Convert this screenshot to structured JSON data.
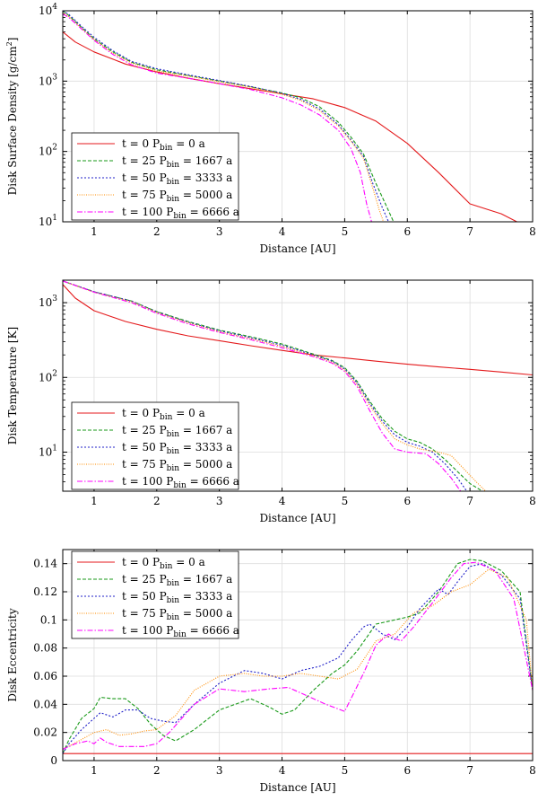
{
  "series_styles": [
    {
      "color": "#e41a1c",
      "dash": ""
    },
    {
      "color": "#1a9a1a",
      "dash": "4,2"
    },
    {
      "color": "#2020c8",
      "dash": "2,2"
    },
    {
      "color": "#ff8c00",
      "dash": "1,1.5"
    },
    {
      "color": "#ff00ff",
      "dash": "6,2,1.5,2"
    }
  ],
  "chart_data": [
    {
      "type": "line",
      "xlabel": "Distance [AU]",
      "ylabel": "Disk Surface Density [g/cm",
      "ylabel_sup": "2",
      "ylabel_end": "]",
      "xlim": [
        0.5,
        8
      ],
      "ylim": [
        10,
        10000
      ],
      "yscale": "log",
      "xticks": [
        "1",
        "2",
        "3",
        "4",
        "5",
        "6",
        "7",
        "8"
      ],
      "ytick_base": "10",
      "ytick_exps": [
        "1",
        "2",
        "3",
        "4"
      ],
      "grid": true,
      "legend_position": "bottom-left",
      "series": [
        {
          "name": "t = 0 P",
          "name_sub": "bin",
          "name_tail": " = 0 a",
          "x": [
            0.5,
            0.7,
            1,
            1.5,
            2,
            2.5,
            3,
            3.5,
            4,
            4.5,
            5,
            5.5,
            6,
            6.5,
            7,
            7.5,
            7.75
          ],
          "y": [
            5000,
            3600,
            2600,
            1750,
            1350,
            1100,
            920,
            780,
            660,
            560,
            420,
            270,
            130,
            50,
            18,
            13,
            10
          ]
        },
        {
          "name": "t = 25 P",
          "name_sub": "bin",
          "name_tail": " = 1667 a",
          "x": [
            0.5,
            0.6,
            0.8,
            1,
            1.3,
            1.6,
            2,
            2.5,
            3,
            3.5,
            4,
            4.3,
            4.6,
            4.9,
            5.1,
            5.3,
            5.5,
            5.65,
            5.78
          ],
          "y": [
            10000,
            8500,
            5800,
            4000,
            2600,
            1850,
            1450,
            1200,
            1000,
            830,
            680,
            580,
            430,
            260,
            160,
            92,
            35,
            18,
            10
          ]
        },
        {
          "name": "t = 50 P",
          "name_sub": "bin",
          "name_tail": " = 3333 a",
          "x": [
            0.5,
            0.6,
            0.8,
            1,
            1.3,
            1.6,
            2,
            2.5,
            3,
            3.5,
            4,
            4.3,
            4.6,
            4.9,
            5.1,
            5.3,
            5.45,
            5.6,
            5.7
          ],
          "y": [
            10000,
            8800,
            6000,
            4200,
            2700,
            1900,
            1500,
            1230,
            1020,
            840,
            670,
            550,
            400,
            240,
            145,
            85,
            35,
            16,
            10
          ]
        },
        {
          "name": "t = 75 P",
          "name_sub": "bin",
          "name_tail": " = 5000 a",
          "x": [
            0.5,
            0.6,
            0.8,
            1,
            1.3,
            1.6,
            2,
            2.5,
            3,
            3.5,
            4,
            4.3,
            4.6,
            4.9,
            5.1,
            5.3,
            5.45,
            5.55,
            5.62
          ],
          "y": [
            9500,
            8200,
            5600,
            3900,
            2500,
            1800,
            1400,
            1180,
            980,
            820,
            650,
            530,
            380,
            230,
            140,
            80,
            30,
            15,
            10
          ]
        },
        {
          "name": "t = 100 P",
          "name_sub": "bin",
          "name_tail": " = 6666 a",
          "x": [
            0.5,
            0.6,
            0.8,
            1,
            1.3,
            1.6,
            2,
            2.5,
            3,
            3.5,
            4,
            4.3,
            4.6,
            4.9,
            5.1,
            5.25,
            5.35,
            5.43
          ],
          "y": [
            9000,
            8000,
            5500,
            3800,
            2400,
            1700,
            1300,
            1100,
            920,
            760,
            580,
            460,
            330,
            200,
            110,
            50,
            18,
            10
          ]
        }
      ]
    },
    {
      "type": "line",
      "xlabel": "Distance [AU]",
      "ylabel": "Disk Temperature [K]",
      "xlim": [
        0.5,
        8
      ],
      "ylim": [
        3,
        2000
      ],
      "yscale": "log",
      "xticks": [
        "1",
        "2",
        "3",
        "4",
        "5",
        "6",
        "7",
        "8"
      ],
      "ytick_base": "10",
      "ytick_exps": [
        "1",
        "2",
        "3"
      ],
      "grid": true,
      "legend_position": "bottom-left",
      "series": [
        {
          "name": "t = 0 P",
          "name_sub": "bin",
          "name_tail": " = 0 a",
          "x": [
            0.5,
            0.7,
            1,
            1.5,
            2,
            2.5,
            3,
            3.5,
            4,
            4.5,
            5,
            5.5,
            6,
            6.5,
            7,
            7.5,
            8
          ],
          "y": [
            1750,
            1150,
            780,
            560,
            440,
            360,
            310,
            265,
            230,
            200,
            182,
            165,
            150,
            138,
            128,
            118,
            108
          ]
        },
        {
          "name": "t = 25 P",
          "name_sub": "bin",
          "name_tail": " = 1667 a",
          "x": [
            0.5,
            1,
            1.6,
            2,
            2.5,
            3,
            3.5,
            4,
            4.5,
            4.8,
            5,
            5.2,
            5.4,
            5.6,
            5.8,
            6,
            6.2,
            6.4,
            6.6,
            6.8,
            7,
            7.2
          ],
          "y": [
            1950,
            1400,
            1050,
            760,
            560,
            430,
            350,
            280,
            205,
            168,
            135,
            88,
            48,
            28,
            19,
            15,
            13.5,
            11,
            8,
            5.5,
            3.8,
            3
          ]
        },
        {
          "name": "t = 50 P",
          "name_sub": "bin",
          "name_tail": " = 3333 a",
          "x": [
            0.5,
            1,
            1.6,
            2,
            2.5,
            3,
            3.5,
            4,
            4.5,
            4.8,
            5,
            5.2,
            5.4,
            5.6,
            5.8,
            6,
            6.2,
            6.4,
            6.6,
            6.8,
            6.95
          ],
          "y": [
            1950,
            1400,
            1050,
            750,
            550,
            420,
            340,
            270,
            200,
            165,
            130,
            84,
            45,
            26,
            17,
            13.5,
            12,
            10,
            7,
            4.5,
            3
          ]
        },
        {
          "name": "t = 75 P",
          "name_sub": "bin",
          "name_tail": " = 5000 a",
          "x": [
            0.5,
            1,
            1.6,
            2,
            2.5,
            3,
            3.5,
            4,
            4.5,
            4.8,
            5,
            5.2,
            5.4,
            5.6,
            5.8,
            6,
            6.2,
            6.5,
            6.7,
            6.9,
            7.1,
            7.25
          ],
          "y": [
            1950,
            1380,
            1030,
            740,
            540,
            410,
            330,
            260,
            195,
            160,
            125,
            80,
            42,
            24,
            15,
            12.5,
            11,
            10,
            9,
            6,
            4,
            3
          ]
        },
        {
          "name": "t = 100 P",
          "name_sub": "bin",
          "name_tail": " = 6666 a",
          "x": [
            0.5,
            1,
            1.6,
            2,
            2.5,
            3,
            3.5,
            4,
            4.5,
            4.8,
            5,
            5.2,
            5.4,
            5.6,
            5.8,
            6,
            6.3,
            6.5,
            6.7,
            6.85
          ],
          "y": [
            1950,
            1380,
            1000,
            720,
            520,
            400,
            320,
            250,
            190,
            155,
            120,
            75,
            36,
            18,
            11,
            10,
            9.5,
            7,
            4.5,
            3
          ]
        }
      ]
    },
    {
      "type": "line",
      "xlabel": "Distance [AU]",
      "ylabel": "Disk Eccentricity",
      "xlim": [
        0.5,
        8
      ],
      "ylim": [
        0,
        0.15
      ],
      "yscale": "linear",
      "xticks": [
        "1",
        "2",
        "3",
        "4",
        "5",
        "6",
        "7",
        "8"
      ],
      "yticks": [
        "0",
        "0.02",
        "0.04",
        "0.06",
        "0.08",
        "0.1",
        "0.12",
        "0.14"
      ],
      "grid": true,
      "legend_position": "top-left",
      "series": [
        {
          "name": "t = 0 P",
          "name_sub": "bin",
          "name_tail": " = 0 a",
          "x": [
            0.5,
            8
          ],
          "y": [
            0.005,
            0.005
          ]
        },
        {
          "name": "t = 25 P",
          "name_sub": "bin",
          "name_tail": " = 1667 a",
          "x": [
            0.5,
            0.6,
            0.8,
            1,
            1.1,
            1.3,
            1.5,
            1.7,
            1.9,
            2.1,
            2.3,
            2.6,
            3,
            3.5,
            3.8,
            4,
            4.2,
            4.5,
            4.8,
            5,
            5.2,
            5.5,
            5.8,
            6,
            6.2,
            6.5,
            6.8,
            7,
            7.2,
            7.5,
            7.8,
            8
          ],
          "y": [
            0.005,
            0.015,
            0.03,
            0.037,
            0.045,
            0.044,
            0.044,
            0.037,
            0.026,
            0.018,
            0.014,
            0.022,
            0.036,
            0.044,
            0.038,
            0.033,
            0.036,
            0.05,
            0.062,
            0.068,
            0.078,
            0.097,
            0.1,
            0.102,
            0.105,
            0.12,
            0.14,
            0.143,
            0.142,
            0.135,
            0.12,
            0.05
          ]
        },
        {
          "name": "t = 50 P",
          "name_sub": "bin",
          "name_tail": " = 3333 a",
          "x": [
            0.5,
            0.6,
            0.8,
            1,
            1.1,
            1.3,
            1.5,
            1.7,
            1.9,
            2.1,
            2.3,
            2.6,
            3,
            3.4,
            3.7,
            4,
            4.3,
            4.6,
            4.9,
            5.1,
            5.3,
            5.4,
            5.6,
            5.8,
            6,
            6.2,
            6.5,
            6.65,
            6.8,
            7,
            7.2,
            7.5,
            7.8,
            8
          ],
          "y": [
            0.005,
            0.012,
            0.022,
            0.03,
            0.034,
            0.031,
            0.036,
            0.036,
            0.03,
            0.028,
            0.027,
            0.04,
            0.055,
            0.064,
            0.062,
            0.058,
            0.064,
            0.067,
            0.073,
            0.085,
            0.095,
            0.097,
            0.09,
            0.086,
            0.095,
            0.108,
            0.122,
            0.118,
            0.127,
            0.138,
            0.14,
            0.132,
            0.115,
            0.05
          ]
        },
        {
          "name": "t = 75 P",
          "name_sub": "bin",
          "name_tail": " = 5000 a",
          "x": [
            0.5,
            0.8,
            1,
            1.2,
            1.4,
            1.6,
            1.8,
            2,
            2.3,
            2.6,
            3,
            3.4,
            3.7,
            4,
            4.3,
            4.6,
            4.9,
            5.2,
            5.5,
            5.8,
            6.1,
            6.4,
            6.7,
            7,
            7.3,
            7.6,
            7.9,
            8
          ],
          "y": [
            0.008,
            0.015,
            0.02,
            0.022,
            0.018,
            0.019,
            0.021,
            0.022,
            0.032,
            0.05,
            0.06,
            0.062,
            0.06,
            0.06,
            0.062,
            0.06,
            0.058,
            0.065,
            0.085,
            0.09,
            0.105,
            0.11,
            0.12,
            0.125,
            0.136,
            0.13,
            0.1,
            0.05
          ]
        },
        {
          "name": "t = 100 P",
          "name_sub": "bin",
          "name_tail": " = 6666 a",
          "x": [
            0.5,
            0.7,
            0.9,
            1,
            1.1,
            1.2,
            1.4,
            1.6,
            1.8,
            2,
            2.2,
            2.6,
            3,
            3.4,
            3.8,
            4.1,
            4.4,
            4.7,
            5,
            5.3,
            5.5,
            5.7,
            5.8,
            5.9,
            6.1,
            6.4,
            6.7,
            6.9,
            7.1,
            7.4,
            7.7,
            8
          ],
          "y": [
            0.008,
            0.012,
            0.014,
            0.012,
            0.016,
            0.013,
            0.01,
            0.01,
            0.01,
            0.012,
            0.02,
            0.04,
            0.051,
            0.049,
            0.051,
            0.052,
            0.046,
            0.04,
            0.035,
            0.062,
            0.082,
            0.09,
            0.087,
            0.085,
            0.095,
            0.112,
            0.13,
            0.14,
            0.141,
            0.135,
            0.115,
            0.05
          ]
        }
      ]
    }
  ]
}
